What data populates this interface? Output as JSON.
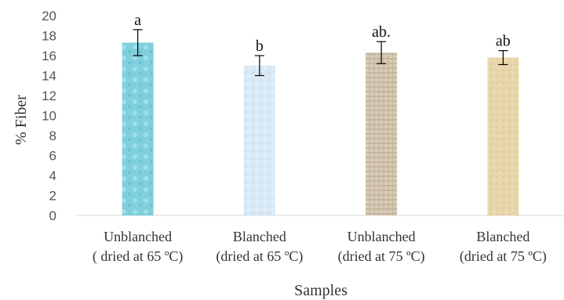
{
  "chart_data": {
    "type": "bar",
    "title": "",
    "xlabel": "Samples",
    "ylabel": "% Fiber",
    "ylim": [
      0,
      20
    ],
    "yticks": [
      0,
      2,
      4,
      6,
      8,
      10,
      12,
      14,
      16,
      18,
      20
    ],
    "grid": false,
    "categories": [
      [
        "Unblanched",
        "( dried at 65 ºC)"
      ],
      [
        "Blanched",
        "(dried at  65 ºC)"
      ],
      [
        "Unblanched",
        "(dried at 75 ºC)"
      ],
      [
        "Blanched",
        "(dried at 75 ºC)"
      ]
    ],
    "values": [
      17.3,
      15.0,
      16.3,
      15.8
    ],
    "errors": [
      1.3,
      1.0,
      1.1,
      0.7
    ],
    "significance_labels": [
      "a",
      "b",
      "ab.",
      "ab"
    ],
    "bar_colors": [
      "#7fd0dc",
      "#d7e8f4",
      "#d0c3ae",
      "#e6d3a6"
    ]
  }
}
